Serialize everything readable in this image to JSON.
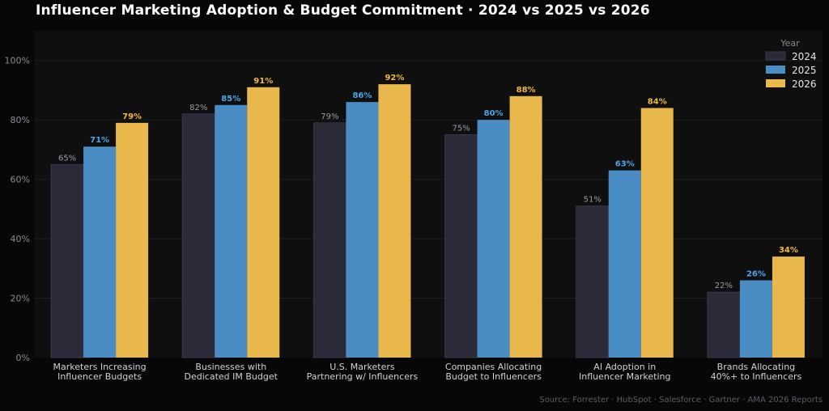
{
  "chart_data": {
    "type": "bar",
    "title": "Influencer Marketing Adoption & Budget Commitment · 2024 vs 2025 vs 2026",
    "categories": [
      [
        "Marketers Increasing",
        "Influencer Budgets"
      ],
      [
        "Businesses with",
        "Dedicated IM Budget"
      ],
      [
        "U.S. Marketers",
        "Partnering w/ Influencers"
      ],
      [
        "Companies Allocating",
        "Budget to Influencers"
      ],
      [
        "AI Adoption in",
        "Influencer Marketing"
      ],
      [
        "Brands Allocating",
        "40%+ to Influencers"
      ]
    ],
    "series": [
      {
        "name": "2024",
        "values": [
          65,
          82,
          79,
          75,
          51,
          22
        ],
        "color": "#2b2a38"
      },
      {
        "name": "2025",
        "values": [
          71,
          85,
          86,
          80,
          63,
          26
        ],
        "color": "#4a8cc4"
      },
      {
        "name": "2026",
        "values": [
          79,
          91,
          92,
          88,
          84,
          34
        ],
        "color": "#e8b84c"
      }
    ],
    "value_format": "%",
    "ylim": [
      0,
      110
    ],
    "yticks": [
      0,
      20,
      40,
      60,
      80,
      100
    ],
    "ytick_labels": [
      "0%",
      "20%",
      "40%",
      "60%",
      "80%",
      "100%"
    ],
    "grid": true,
    "legend": {
      "title": "Year",
      "placement": "top-right"
    },
    "source": "Source: Forrester · HubSpot · Salesforce · Gartner · AMA 2026 Reports"
  }
}
